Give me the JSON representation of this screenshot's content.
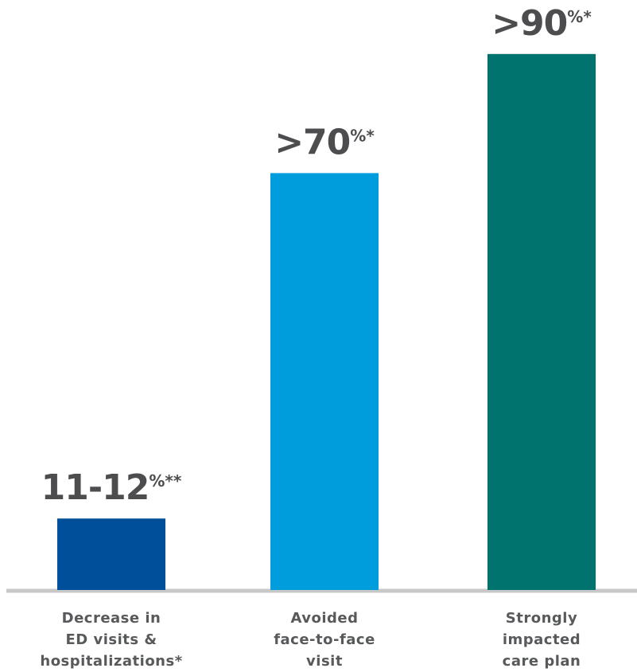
{
  "chart_data": {
    "type": "bar",
    "categories": [
      [
        "Decrease in",
        "ED visits &",
        "hospitalizations*"
      ],
      [
        "Avoided",
        "face-to-face",
        "visit"
      ],
      [
        "Strongly",
        "impacted",
        "care plan"
      ]
    ],
    "values": [
      12,
      70,
      90
    ],
    "value_labels": [
      {
        "main": "11-12",
        "sup": "%**"
      },
      {
        "main": ">70",
        "sup": "%*"
      },
      {
        "main": ">90",
        "sup": "%*"
      }
    ],
    "colors": [
      "#004f9a",
      "#009ddd",
      "#00736f"
    ],
    "axis_color": "#c8c8c8",
    "ylim": [
      0,
      100
    ],
    "grid": false,
    "legend": "none"
  }
}
